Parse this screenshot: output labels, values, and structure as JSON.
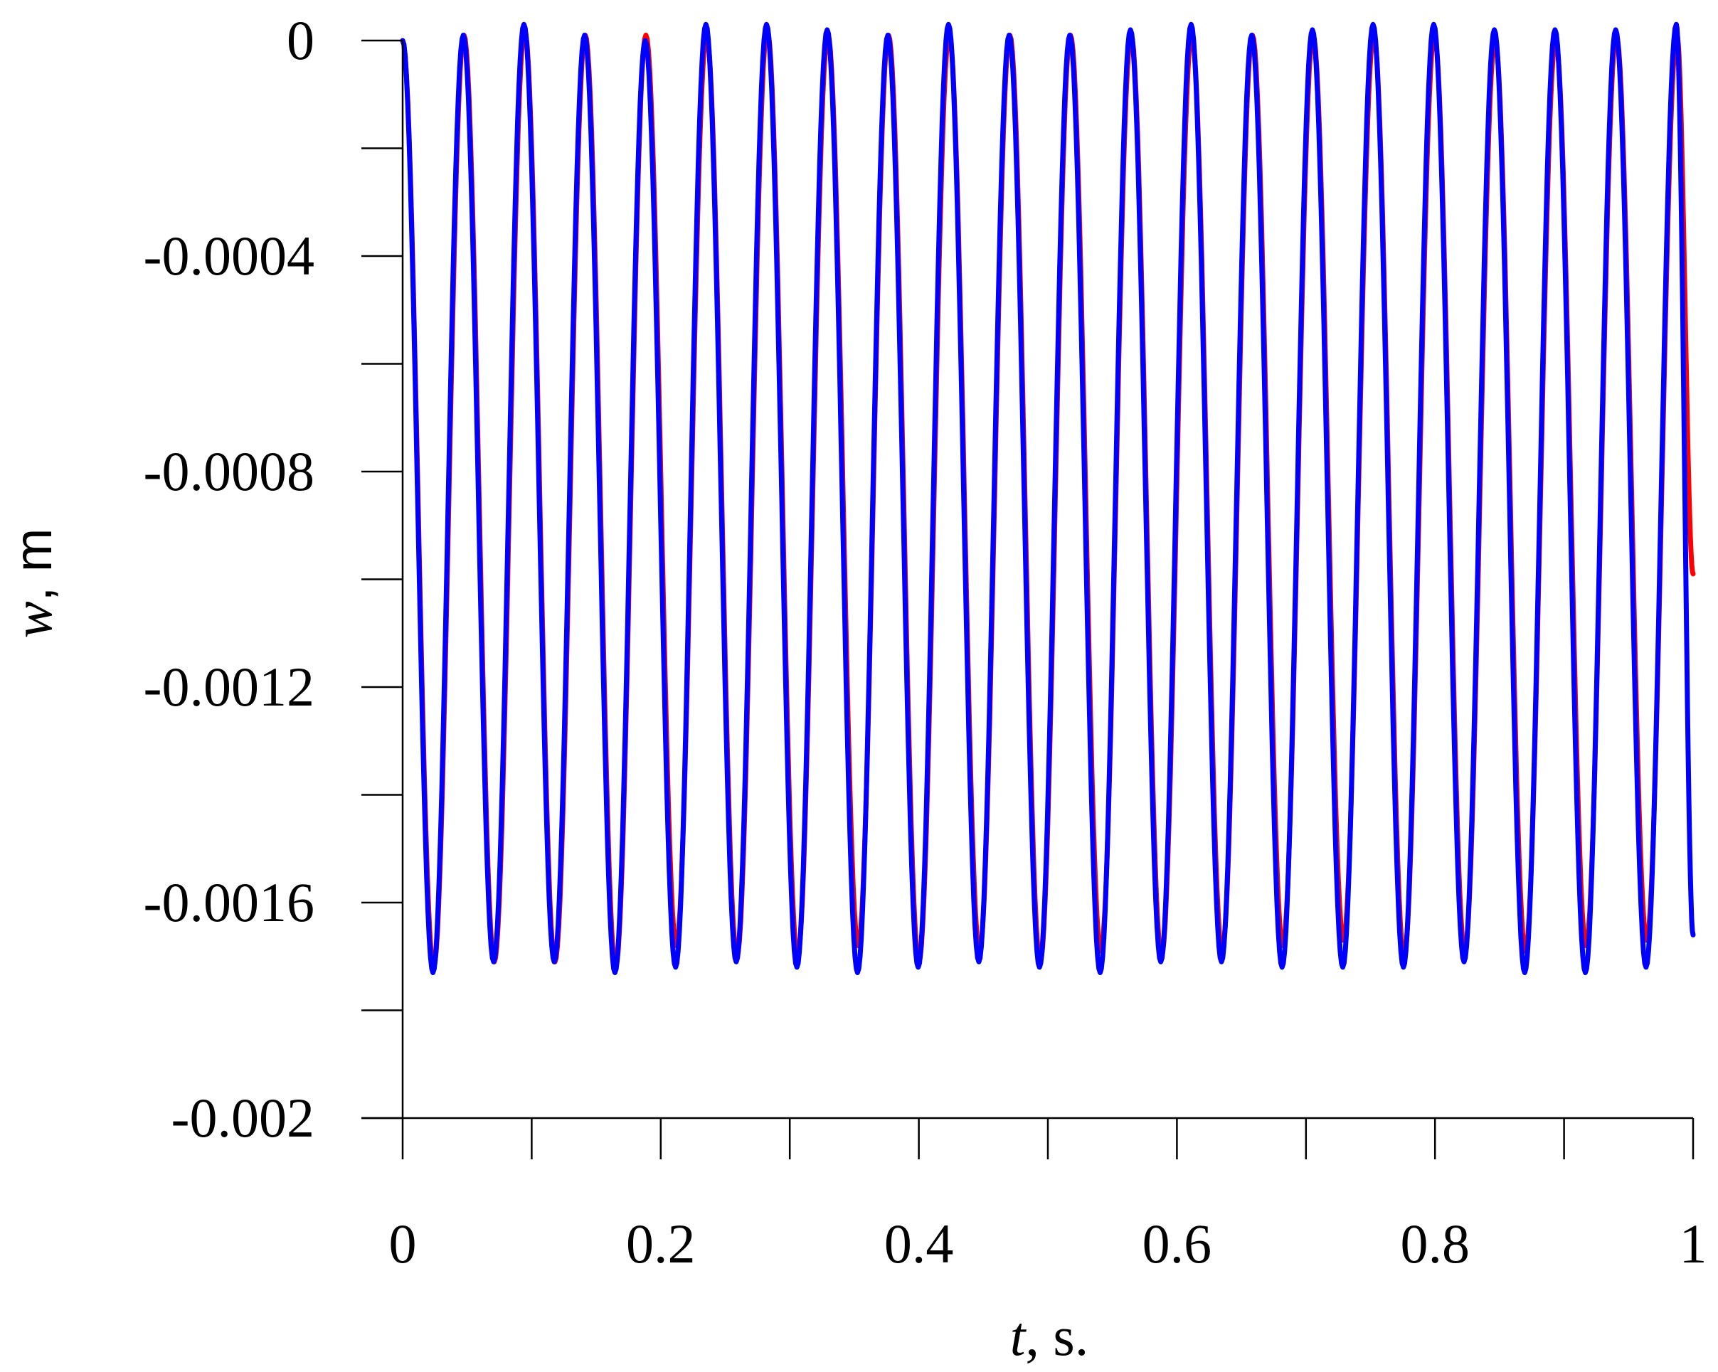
{
  "chart_data": {
    "type": "line",
    "title": "",
    "xlabel": {
      "var": "t",
      "unit": ", s."
    },
    "ylabel": {
      "var": "w",
      "unit": ", m"
    },
    "xlim": [
      0,
      1
    ],
    "ylim": [
      -0.002,
      0
    ],
    "x_ticks": [
      0,
      0.1,
      0.2,
      0.3,
      0.4,
      0.5,
      0.6,
      0.7,
      0.8,
      0.9,
      1
    ],
    "x_tick_labels": [
      {
        "value": 0,
        "label": "0"
      },
      {
        "value": 0.2,
        "label": "0.2"
      },
      {
        "value": 0.4,
        "label": "0.4"
      },
      {
        "value": 0.6,
        "label": "0.6"
      },
      {
        "value": 0.8,
        "label": "0.8"
      },
      {
        "value": 1,
        "label": "1"
      }
    ],
    "y_ticks": [
      0,
      -0.0002,
      -0.0004,
      -0.0006,
      -0.0008,
      -0.001,
      -0.0012,
      -0.0014,
      -0.0016,
      -0.0018,
      -0.002
    ],
    "y_tick_labels": [
      {
        "value": 0,
        "label": "0"
      },
      {
        "value": -0.0004,
        "label": "-0.0004"
      },
      {
        "value": -0.0008,
        "label": "-0.0008"
      },
      {
        "value": -0.0012,
        "label": "-0.0012"
      },
      {
        "value": -0.0016,
        "label": "-0.0016"
      },
      {
        "value": -0.002,
        "label": "-0.002"
      }
    ],
    "grid": false,
    "legend": "none",
    "series": [
      {
        "color": "#ff0000",
        "x": [
          0,
          0.024,
          0.0475,
          0.071,
          0.0945,
          0.118,
          0.1415,
          0.165,
          0.1885,
          0.212,
          0.2355,
          0.259,
          0.2825,
          0.306,
          0.3295,
          0.353,
          0.3765,
          0.4,
          0.4235,
          0.447,
          0.4705,
          0.494,
          0.5175,
          0.541,
          0.5645,
          0.588,
          0.6115,
          0.635,
          0.6585,
          0.682,
          0.7055,
          0.729,
          0.7525,
          0.776,
          0.7995,
          0.823,
          0.8465,
          0.87,
          0.8935,
          0.917,
          0.9405,
          0.964,
          0.9875,
          1.0
        ],
        "y": [
          0,
          -0.00172,
          1e-05,
          -0.00171,
          2e-05,
          -0.00171,
          1e-05,
          -0.00172,
          1e-05,
          -0.00168,
          1e-05,
          -0.0017,
          2e-05,
          -0.0017,
          1e-05,
          -0.00168,
          1e-05,
          -0.00171,
          1e-05,
          -0.00169,
          1e-05,
          -0.00171,
          1e-05,
          -0.00169,
          1e-05,
          -0.0017,
          1e-05,
          -0.00169,
          1e-05,
          -0.00168,
          1e-05,
          -0.00167,
          1e-05,
          -0.0017,
          1e-05,
          -0.00169,
          0.0,
          -0.00169,
          0.0,
          -0.00168,
          1e-05,
          -0.00167,
          1e-05,
          -0.00099
        ]
      },
      {
        "color": "#0000ff",
        "x": [
          0,
          0.0235,
          0.047,
          0.0705,
          0.094,
          0.1175,
          0.141,
          0.1645,
          0.188,
          0.2115,
          0.235,
          0.2585,
          0.282,
          0.3055,
          0.329,
          0.3525,
          0.376,
          0.3995,
          0.423,
          0.4465,
          0.47,
          0.4935,
          0.517,
          0.5405,
          0.564,
          0.5875,
          0.611,
          0.6345,
          0.658,
          0.6815,
          0.705,
          0.7285,
          0.752,
          0.7755,
          0.799,
          0.8225,
          0.846,
          0.8695,
          0.893,
          0.9165,
          0.94,
          0.9635,
          0.987,
          1.0
        ],
        "y": [
          0,
          -0.00173,
          1e-05,
          -0.00171,
          3e-05,
          -0.00171,
          1e-05,
          -0.00173,
          0.0,
          -0.00172,
          3e-05,
          -0.00171,
          3e-05,
          -0.00172,
          2e-05,
          -0.00173,
          1e-05,
          -0.00172,
          3e-05,
          -0.00171,
          1e-05,
          -0.00172,
          1e-05,
          -0.00173,
          2e-05,
          -0.00171,
          3e-05,
          -0.00171,
          1e-05,
          -0.00172,
          2e-05,
          -0.00172,
          3e-05,
          -0.00172,
          3e-05,
          -0.00171,
          2e-05,
          -0.00173,
          2e-05,
          -0.00173,
          2e-05,
          -0.00172,
          3e-05,
          -0.00166
        ]
      }
    ]
  }
}
